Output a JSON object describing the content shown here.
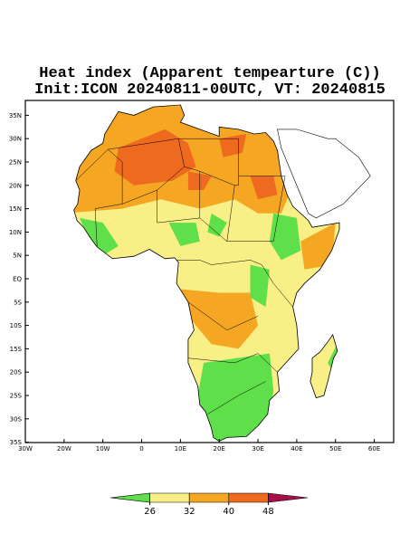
{
  "header": {
    "title": "Heat index (Apparent tempearture (C))",
    "subtitle": "Init:ICON 20240811-00UTC, VT: 20240815"
  },
  "map": {
    "lat_labels": [
      "35N",
      "30N",
      "25N",
      "20N",
      "15N",
      "10N",
      "5N",
      "EQ",
      "5S",
      "10S",
      "15S",
      "20S",
      "25S",
      "30S",
      "35S"
    ],
    "lon_labels": [
      "30W",
      "20W",
      "10W",
      "0",
      "10E",
      "20E",
      "30E",
      "40E",
      "50E",
      "60E"
    ]
  },
  "colorbar": {
    "levels": [
      26,
      32,
      40,
      48
    ]
  }
}
